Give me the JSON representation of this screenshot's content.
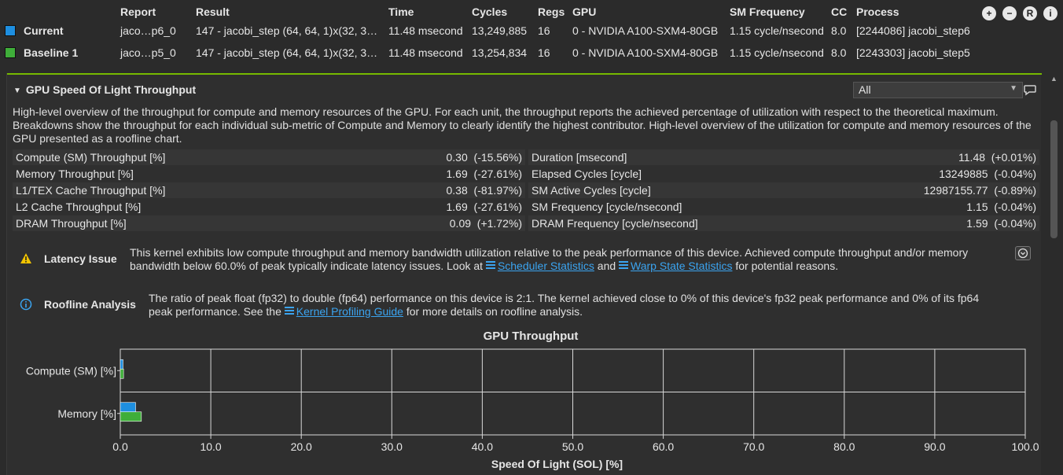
{
  "header": {
    "columns": [
      "Report",
      "Result",
      "Time",
      "Cycles",
      "Regs",
      "GPU",
      "SM Frequency",
      "CC",
      "Process"
    ],
    "rows": [
      {
        "name": "Current",
        "color": "#1e8fe0",
        "report": "jaco…p6_0",
        "result": "147 - jacobi_step (64, 64, 1)x(32, 3…",
        "time": "11.48 msecond",
        "cycles": "13,249,885",
        "regs": "16",
        "gpu": "0 - NVIDIA A100-SXM4-80GB",
        "sm_frequency": "1.15 cycle/nsecond",
        "cc": "8.0",
        "process": "[2244086] jacobi_step6"
      },
      {
        "name": "Baseline 1",
        "color": "#3fae3a",
        "report": "jaco…p5_0",
        "result": "147 - jacobi_step (64, 64, 1)x(32, 3…",
        "time": "11.48 msecond",
        "cycles": "13,254,834",
        "regs": "16",
        "gpu": "0 - NVIDIA A100-SXM4-80GB",
        "sm_frequency": "1.15 cycle/nsecond",
        "cc": "8.0",
        "process": "[2243303] jacobi_step5"
      }
    ],
    "toolbar_icons": [
      "add-baseline-icon",
      "remove-baseline-icon",
      "reset-icon",
      "info-icon"
    ]
  },
  "section": {
    "title": "GPU Speed Of Light Throughput",
    "filter_value": "All",
    "description": "High-level overview of the throughput for compute and memory resources of the GPU. For each unit, the throughput reports the achieved percentage of utilization with respect to the theoretical maximum. Breakdowns show the throughput for each individual sub-metric of Compute and Memory to clearly identify the highest contributor. High-level overview of the utilization for compute and memory resources of the GPU presented as a roofline chart.",
    "metrics_left": [
      {
        "label": "Compute (SM) Throughput [%]",
        "value": "0.30",
        "delta": "(-15.56%)"
      },
      {
        "label": "Memory Throughput [%]",
        "value": "1.69",
        "delta": "(-27.61%)"
      },
      {
        "label": "L1/TEX Cache Throughput [%]",
        "value": "0.38",
        "delta": "(-81.97%)"
      },
      {
        "label": "L2 Cache Throughput [%]",
        "value": "1.69",
        "delta": "(-27.61%)"
      },
      {
        "label": "DRAM Throughput [%]",
        "value": "0.09",
        "delta": "(+1.72%)"
      }
    ],
    "metrics_right": [
      {
        "label": "Duration [msecond]",
        "value": "11.48",
        "delta": "(+0.01%)"
      },
      {
        "label": "Elapsed Cycles [cycle]",
        "value": "13249885",
        "delta": "(-0.04%)"
      },
      {
        "label": "SM Active Cycles [cycle]",
        "value": "12987155.77",
        "delta": "(-0.89%)"
      },
      {
        "label": "SM Frequency [cycle/nsecond]",
        "value": "1.15",
        "delta": "(-0.04%)"
      },
      {
        "label": "DRAM Frequency [cycle/nsecond]",
        "value": "1.59",
        "delta": "(-0.04%)"
      }
    ],
    "rules": {
      "latency": {
        "title": "Latency Issue",
        "text_1": "This kernel exhibits low compute throughput and memory bandwidth utilization relative to the peak performance of this device. Achieved compute throughput and/or memory bandwidth below 60.0% of peak typically indicate latency issues. Look at ",
        "link_1": "Scheduler Statistics",
        "text_2": " and ",
        "link_2": "Warp State Statistics",
        "text_3": " for potential reasons."
      },
      "roofline": {
        "title": "Roofline Analysis",
        "text_1": "The ratio of peak float (fp32) to double (fp64) performance on this device is 2:1. The kernel achieved close to 0% of this device's fp32 peak performance and 0% of its fp64 peak performance. See the ",
        "link_1": "Kernel Profiling Guide",
        "text_2": " for more details on roofline analysis."
      }
    }
  },
  "chart_data": {
    "type": "bar",
    "orientation": "horizontal",
    "title": "GPU Throughput",
    "xlabel": "Speed Of Light (SOL) [%]",
    "ylabel": "",
    "categories": [
      "Compute (SM) [%]",
      "Memory [%]"
    ],
    "series": [
      {
        "name": "Current",
        "color": "#1e8fe0",
        "values": [
          0.3,
          1.69
        ]
      },
      {
        "name": "Baseline 1",
        "color": "#3fae3a",
        "values": [
          0.36,
          2.33
        ]
      }
    ],
    "xlim": [
      0,
      100
    ],
    "xticks": [
      "0.0",
      "10.0",
      "20.0",
      "30.0",
      "40.0",
      "50.0",
      "60.0",
      "70.0",
      "80.0",
      "90.0",
      "100.0"
    ],
    "grid": true
  }
}
